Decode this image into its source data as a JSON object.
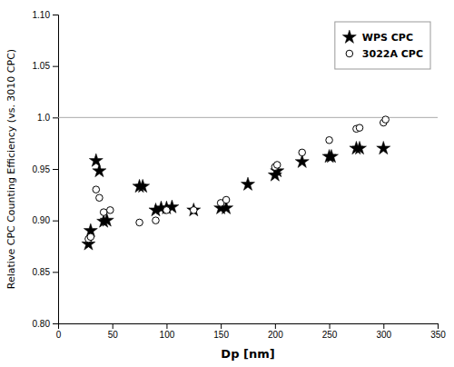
{
  "chart_data": {
    "type": "scatter",
    "xlabel": "Dp [nm]",
    "ylabel": "Relative CPC Counting Efficiency (vs. 3010 CPC)",
    "xlim": [
      0,
      350
    ],
    "ylim": [
      0.8,
      1.1
    ],
    "xticks": [
      0,
      50,
      100,
      150,
      200,
      250,
      300,
      350
    ],
    "yticks": [
      {
        "value": 0.8,
        "label": "0.80"
      },
      0.85,
      {
        "value": 0.9,
        "label": "0.90"
      },
      0.95,
      {
        "value": 1.0,
        "label": "1.0"
      },
      1.05,
      {
        "value": 1.1,
        "label": "1.10"
      }
    ],
    "grid": false,
    "legend": "upper-right",
    "reference_lines": [
      {
        "y": 1.0,
        "color": "#aaaaaa"
      }
    ],
    "series": [
      {
        "name": "WPS CPC",
        "color": "#000000",
        "marker": "star",
        "x": [
          28,
          30,
          35,
          38,
          42,
          45,
          75,
          78,
          90,
          95,
          100,
          105,
          125,
          150,
          155,
          175,
          200,
          202,
          225,
          250,
          252,
          275,
          278,
          300
        ],
        "values": [
          0.877,
          0.89,
          0.958,
          0.948,
          0.899,
          0.9,
          0.933,
          0.933,
          0.91,
          0.912,
          0.912,
          0.913,
          0.91,
          0.912,
          0.912,
          0.935,
          0.944,
          0.948,
          0.957,
          0.962,
          0.962,
          0.97,
          0.97,
          0.97
        ]
      },
      {
        "name": "3022A CPC",
        "color": "#000000",
        "marker": "circle",
        "x": [
          28,
          30,
          35,
          38,
          42,
          48,
          75,
          90,
          100,
          125,
          150,
          155,
          200,
          202,
          225,
          250,
          275,
          278,
          300,
          302
        ],
        "values": [
          0.882,
          0.884,
          0.93,
          0.922,
          0.908,
          0.91,
          0.898,
          0.9,
          0.91,
          0.91,
          0.917,
          0.92,
          0.952,
          0.954,
          0.966,
          0.978,
          0.989,
          0.99,
          0.995,
          0.998
        ]
      }
    ]
  }
}
